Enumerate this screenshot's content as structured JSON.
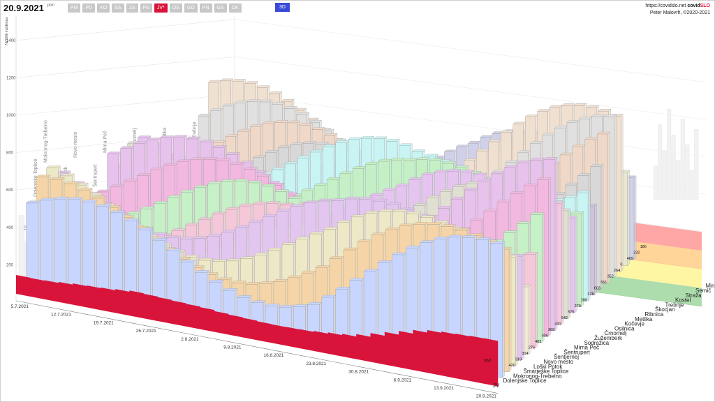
{
  "header": {
    "date": "20.9.2021",
    "day": "pon",
    "regions": [
      {
        "label": "PM",
        "active": false
      },
      {
        "label": "PD",
        "active": false
      },
      {
        "label": "KO",
        "active": false
      },
      {
        "label": "SA",
        "active": false
      },
      {
        "label": "ZA",
        "active": false
      },
      {
        "label": "PS",
        "active": false
      },
      {
        "label": "JV*",
        "active": true
      },
      {
        "label": "OS",
        "active": false
      },
      {
        "label": "GO",
        "active": false
      },
      {
        "label": "PN",
        "active": false
      },
      {
        "label": "GS",
        "active": false
      },
      {
        "label": "OK",
        "active": false
      }
    ],
    "view_button": "3D",
    "site_url": "https://covidslo.net",
    "brand_part1": "covid",
    "brand_part2": "SLO",
    "credit": "Peter Malovrh, ©2020-2021"
  },
  "colors": {
    "region_total": "#d9143a",
    "band_red": "#ff5c5c",
    "band_orange": "#ffb347",
    "band_yellow": "#ffee58",
    "band_green": "#6abf69",
    "active_button": "#d9143a",
    "view_button": "#3a4ad8"
  },
  "chart_data": {
    "type": "bar",
    "variant": "3d-stacked-time-series",
    "ylabel": "7d/100k incidenca",
    "y_ticks": [
      200,
      400,
      600,
      800,
      1000,
      1200,
      1400
    ],
    "ylim": [
      0,
      1500
    ],
    "x_ticks": [
      "5.7.2021",
      "12.7.2021",
      "19.7.2021",
      "26.7.2021",
      "2.8.2021",
      "9.8.2021",
      "16.8.2021",
      "23.8.2021",
      "30.8.2021",
      "6.9.2021",
      "13.9.2021",
      "20.9.2021"
    ],
    "thresholds": [
      {
        "from": 200,
        "to": 300,
        "color": "#6abf69"
      },
      {
        "from": 300,
        "to": 400,
        "color": "#ffee58"
      },
      {
        "from": 400,
        "to": 500,
        "color": "#ffb347"
      },
      {
        "from": 500,
        "to": 600,
        "color": "#ff5c5c"
      }
    ],
    "series": [
      {
        "name": "JV",
        "color": "#d9143a",
        "current": 362
      },
      {
        "name": "Dolenjske Toplice",
        "color": "#c8d6ff",
        "current": 420
      },
      {
        "name": "Mokronog-Trebelno",
        "color": "#f5d5a8",
        "current": 319
      },
      {
        "name": "Šmarješke Toplice",
        "color": "#ede8c6",
        "current": 314
      },
      {
        "name": "Loški Potok",
        "color": "#e2c6f0",
        "current": 276
      },
      {
        "name": "Novo mesto",
        "color": "#efe8d2",
        "current": 403
      },
      {
        "name": "Šentjernej",
        "color": "#f4c8d9",
        "current": 305
      },
      {
        "name": "Šentrupert",
        "color": "#c6f0c6",
        "current": 369
      },
      {
        "name": "Mirna Peč",
        "color": "#f2b8e0",
        "current": 431
      },
      {
        "name": "Sodražica",
        "color": "#e7c2ec",
        "current": 542
      },
      {
        "name": "Žužemberk",
        "color": "#f4c9e0",
        "current": 575
      },
      {
        "name": "Črnomelj",
        "color": "#e0e0d2",
        "current": 279
      },
      {
        "name": "Osilnica",
        "color": "#e6c4f0",
        "current": 288
      },
      {
        "name": "Kočevje",
        "color": "#c5f0c5",
        "current": 178
      },
      {
        "name": "Metlika",
        "color": "#c8f4f4",
        "current": 603
      },
      {
        "name": "Ribnica",
        "color": "#d0c4dc",
        "current": 561
      },
      {
        "name": "Škocjan",
        "color": "#d8d8d8",
        "current": 352
      },
      {
        "name": "Trebnje",
        "color": "#f0d8c8",
        "current": 264
      },
      {
        "name": "Kostel",
        "color": "#e0e0e0",
        "current": 0
      },
      {
        "name": "Straža",
        "color": "#f0e0d0",
        "current": 409
      },
      {
        "name": "Semič",
        "color": "#e8e8d0",
        "current": 232
      },
      {
        "name": "Mirna",
        "color": "#d0d0e8",
        "current": 186
      }
    ],
    "back_labels": [
      "JV",
      "Dolenjske Toplice",
      "Mokronog-Trebelno",
      "Šmarješke Toplice",
      "Loški Potok",
      "Novo mesto",
      "Šentjernej",
      "Šentrupert",
      "Mirna Peč",
      "Sodražica",
      "Žužemberk",
      "Črnomelj",
      "Osilnica",
      "Kočevje",
      "Metlika",
      "Ribnica",
      "Škocjan",
      "Trebnje",
      "Kostel",
      "Straža",
      "Semič",
      "Mirna"
    ],
    "total_series_name": "JV",
    "total_values": [
      150,
      148,
      152,
      160,
      170,
      175,
      180,
      190,
      200,
      195,
      190,
      185,
      180,
      175,
      165,
      160,
      155,
      150,
      148,
      150,
      152,
      160,
      170,
      180,
      200,
      230,
      260,
      290,
      320,
      340,
      350,
      355,
      360,
      362
    ]
  }
}
